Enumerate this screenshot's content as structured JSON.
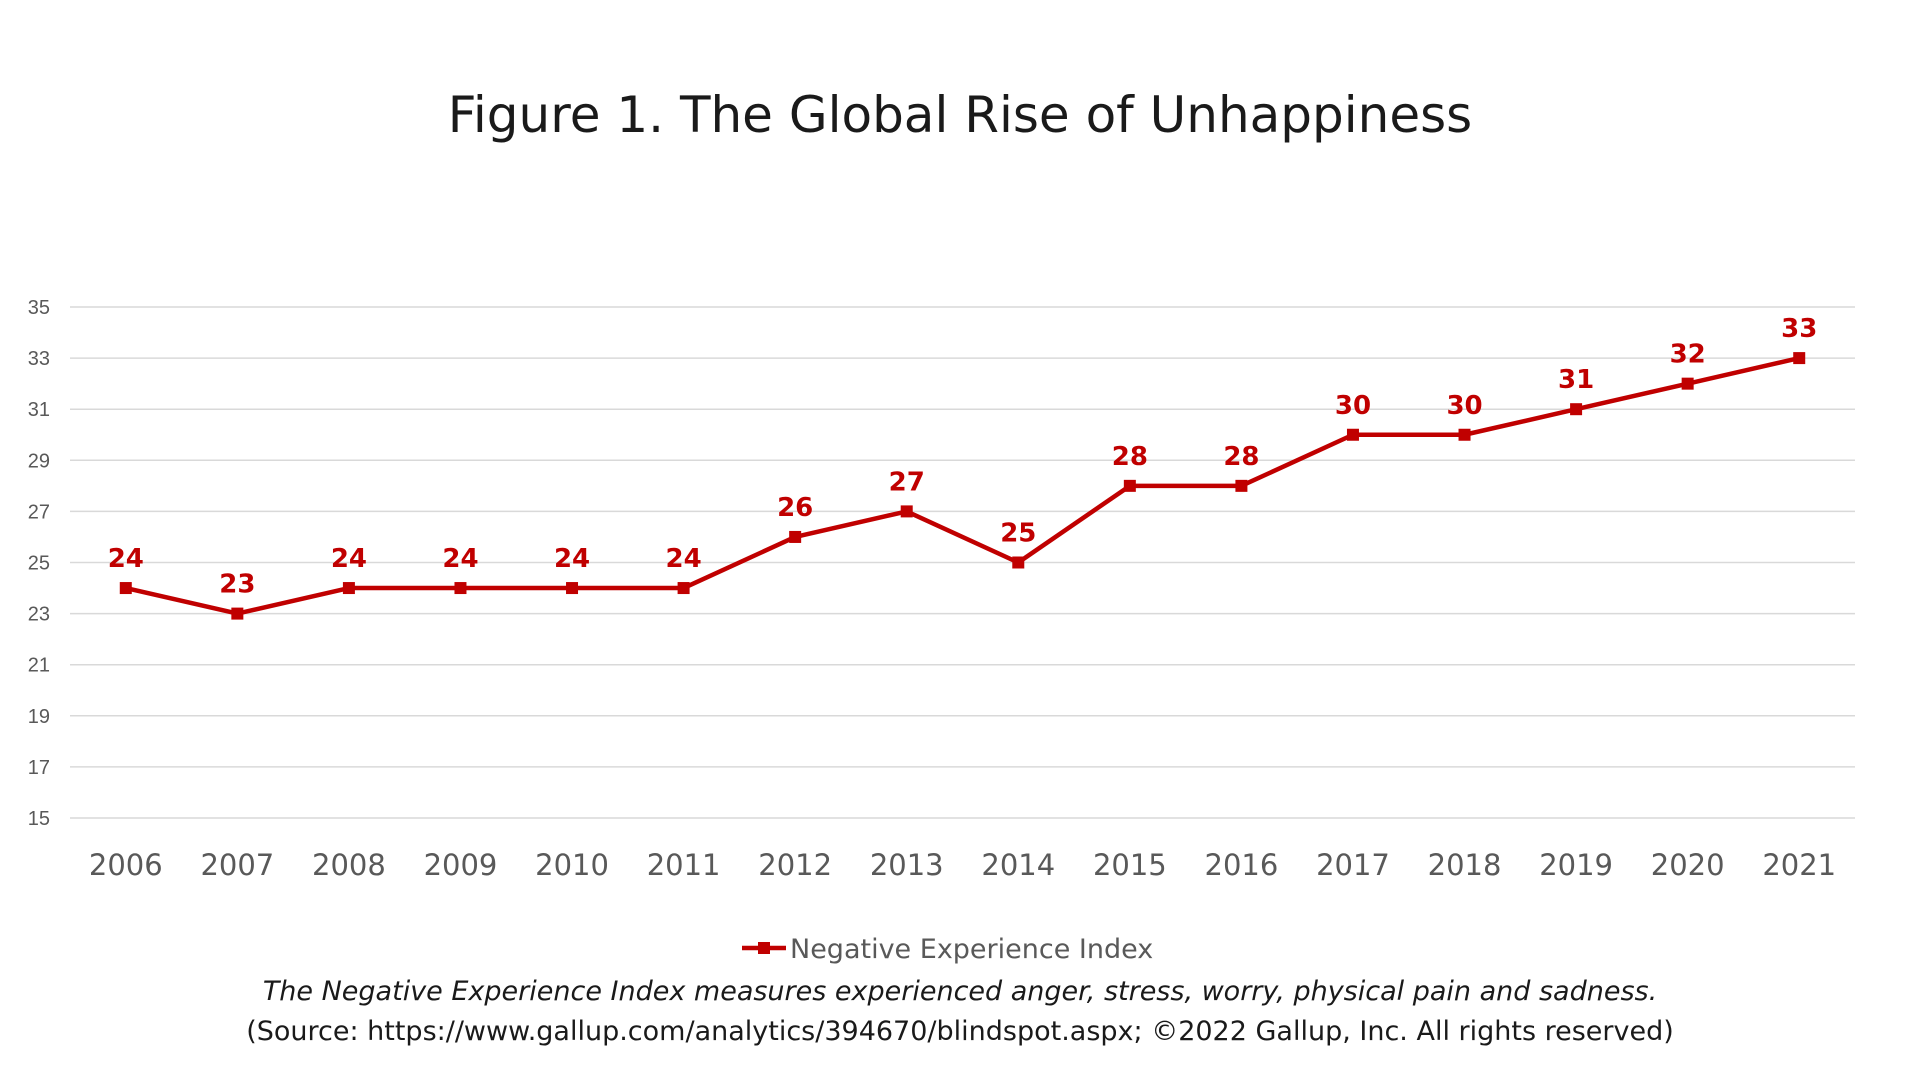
{
  "chart_data": {
    "type": "line",
    "title": "Figure 1. The Global Rise of Unhappiness",
    "xlabel": "",
    "ylabel": "",
    "categories": [
      "2006",
      "2007",
      "2008",
      "2009",
      "2010",
      "2011",
      "2012",
      "2013",
      "2014",
      "2015",
      "2016",
      "2017",
      "2018",
      "2019",
      "2020",
      "2021"
    ],
    "series": [
      {
        "name": "Negative Experience Index",
        "values": [
          24,
          23,
          24,
          24,
          24,
          24,
          26,
          27,
          25,
          28,
          28,
          30,
          30,
          31,
          32,
          33
        ],
        "color": "#c00000",
        "marker": "square",
        "data_labels": true
      }
    ],
    "ylim": [
      15,
      35
    ],
    "yticks": [
      15,
      17,
      19,
      21,
      23,
      25,
      27,
      29,
      31,
      33,
      35
    ],
    "grid": true,
    "legend": "bottom-center"
  },
  "caption": {
    "line1": "The Negative Experience Index measures experienced anger, stress, worry, physical pain and sadness.",
    "line2": "(Source: https://www.gallup.com/analytics/394670/blindspot.aspx; ©2022 Gallup, Inc. All rights reserved)"
  }
}
